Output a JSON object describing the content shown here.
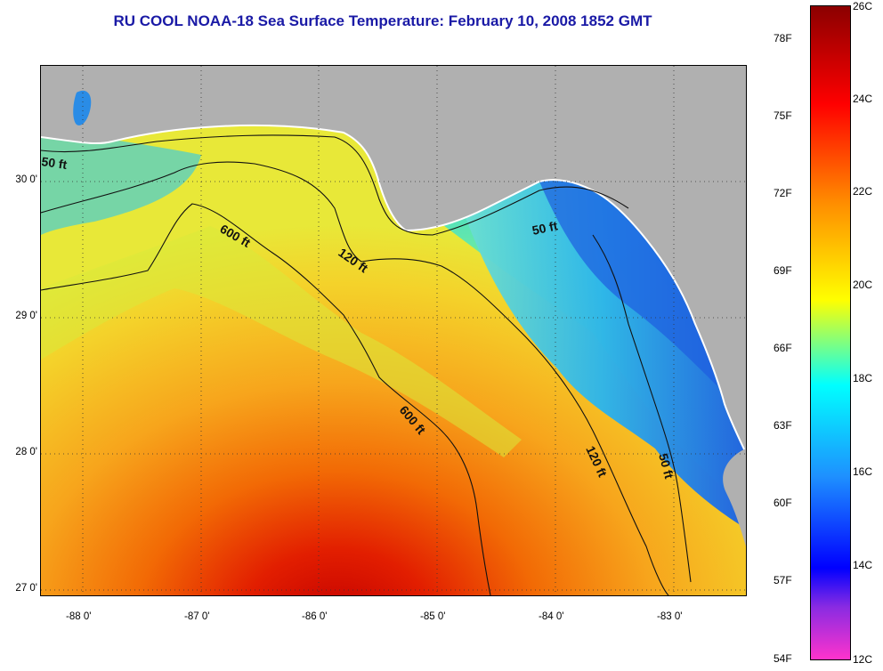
{
  "title": "RU COOL  NOAA-18  Sea Surface Temperature:  February 10, 2008 1852 GMT",
  "title_color": "#1a1aa6",
  "land_color": "#b0b0b0",
  "lat_labels": [
    "30 0'",
    "29 0'",
    "28 0'",
    "27 0'"
  ],
  "lon_labels": [
    "-88 0'",
    "-87 0'",
    "-86 0'",
    "-85 0'",
    "-84 0'",
    "-83 0'"
  ],
  "contours": {
    "c50_west": "50 ft",
    "c50_east": "50 ft",
    "c50_south": "50 ft",
    "c120_mid": "120 ft",
    "c120_south": "120 ft",
    "c600_north": "600 ft",
    "c600_south": "600 ft"
  },
  "colorbar": {
    "fahrenheit": [
      "78F",
      "75F",
      "72F",
      "69F",
      "66F",
      "63F",
      "60F",
      "57F",
      "54F"
    ],
    "celsius": [
      "26C",
      "24C",
      "22C",
      "20C",
      "18C",
      "16C",
      "14C",
      "12C"
    ],
    "colors": [
      "#8b0000",
      "#ff0000",
      "#ff8c00",
      "#ffff00",
      "#00ffff",
      "#1e90ff",
      "#0000ff",
      "#8a2be2",
      "#ff33cc"
    ]
  }
}
